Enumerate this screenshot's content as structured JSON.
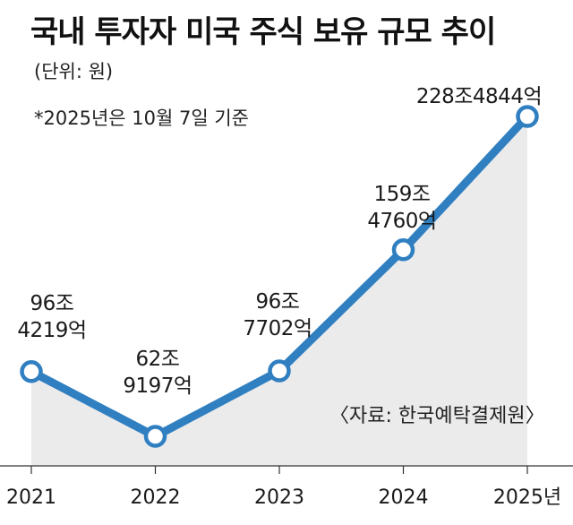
{
  "title": "국내 투자자 미국 주식 보유 규모 추이",
  "unit_note": "(단위: 원)",
  "footnote": "*2025년은 10월 7일 기준",
  "source": "〈자료: 한국예탁결제원〉",
  "colors": {
    "line": "#2f7fc1",
    "area": "#ebebeb",
    "marker_fill": "#ffffff",
    "text": "#1a1a1a"
  },
  "chart_data": {
    "type": "line",
    "title": "국내 투자자 미국 주식 보유 규모 추이",
    "unit": "원",
    "x": [
      "2021",
      "2022",
      "2023",
      "2024",
      "2025년"
    ],
    "series": [
      {
        "values": [
          96.4219,
          62.9197,
          96.7702,
          159.476,
          228.4844
        ]
      }
    ],
    "data_labels": [
      [
        "96조",
        "4219억"
      ],
      [
        "62조",
        "9197억"
      ],
      [
        "96조",
        "7702억"
      ],
      [
        "159조",
        "4760억"
      ],
      [
        "228조4844억"
      ]
    ],
    "grid": false,
    "legend": "none"
  }
}
